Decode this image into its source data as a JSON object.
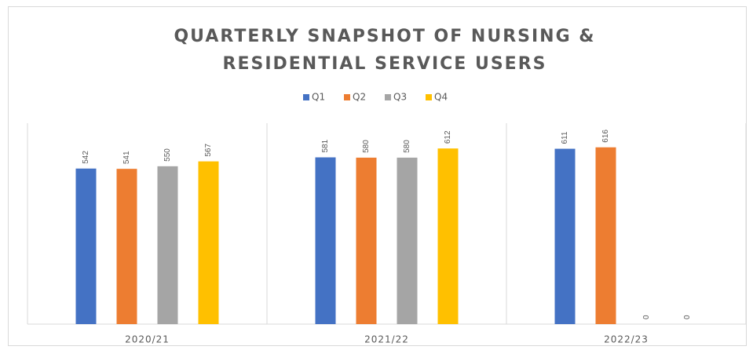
{
  "chart_data": {
    "type": "bar",
    "title": [
      "QUARTERLY SNAPSHOT OF NURSING &",
      "RESIDENTIAL SERVICE USERS"
    ],
    "categories": [
      "2020/21",
      "2021/22",
      "2022/23"
    ],
    "series": [
      {
        "name": "Q1",
        "color": "#4472c4",
        "values": [
          542,
          581,
          611
        ]
      },
      {
        "name": "Q2",
        "color": "#ed7d31",
        "values": [
          541,
          580,
          616
        ]
      },
      {
        "name": "Q3",
        "color": "#a5a5a5",
        "values": [
          550,
          580,
          0
        ]
      },
      {
        "name": "Q4",
        "color": "#ffc000",
        "values": [
          567,
          612,
          0
        ]
      }
    ],
    "ylim": [
      0,
      700
    ],
    "legend": "top"
  }
}
